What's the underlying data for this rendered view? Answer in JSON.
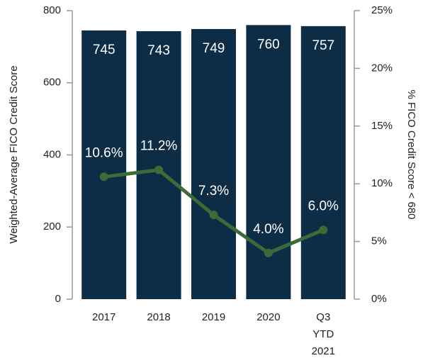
{
  "chart_data": {
    "type": "bar_line",
    "categories": [
      "2017",
      "2018",
      "2019",
      "2020",
      "Q3 YTD 2021"
    ],
    "ylabel": "Weighted-Average FICO Credit Score",
    "y2label": "% FICO Credit Score < 680",
    "ylim": [
      0,
      800
    ],
    "yticks": [
      0,
      200,
      400,
      600,
      800
    ],
    "y2lim": [
      0,
      25
    ],
    "y2ticks": [
      {
        "value": 0,
        "label": "0%"
      },
      {
        "value": 5,
        "label": "5%"
      },
      {
        "value": 10,
        "label": "10%"
      },
      {
        "value": 15,
        "label": "15%"
      },
      {
        "value": 20,
        "label": "20%"
      },
      {
        "value": 25,
        "label": "25%"
      }
    ],
    "series": [
      {
        "type": "bar",
        "color": "#0d2d47",
        "values": [
          745,
          743,
          749,
          760,
          757
        ]
      },
      {
        "type": "line",
        "axis": "y2",
        "color": "#3b6b36",
        "values": [
          10.6,
          11.2,
          7.3,
          4.0,
          6.0
        ],
        "value_labels": [
          "10.6%",
          "11.2%",
          "7.3%",
          "4.0%",
          "6.0%"
        ]
      }
    ]
  }
}
